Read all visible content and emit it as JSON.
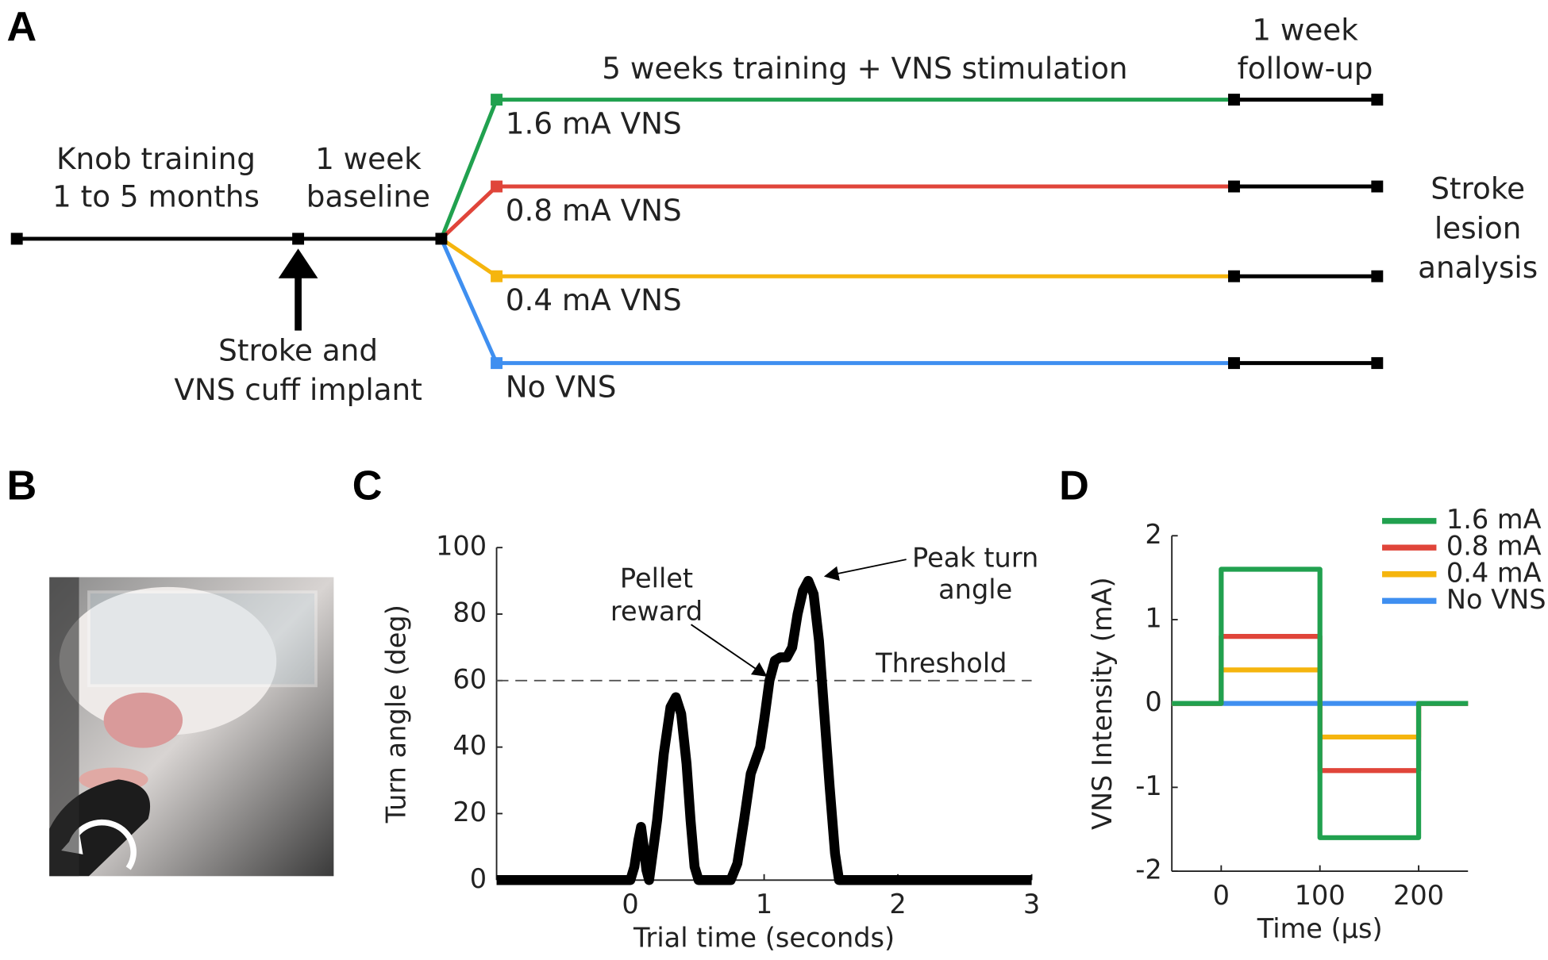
{
  "panel_labels": [
    "A",
    "B",
    "C",
    "D"
  ],
  "timeline": {
    "training": [
      "Knob training",
      "1 to 5 months"
    ],
    "baseline": [
      "1 week",
      "baseline"
    ],
    "surgery": [
      "Stroke and",
      "VNS cuff implant"
    ],
    "treatment": "5 weeks training + VNS stimulation",
    "followup": [
      "1 week",
      "follow-up"
    ],
    "analysis": [
      "Stroke",
      "lesion",
      "analysis"
    ],
    "groups": [
      {
        "label": "1.6 mA VNS",
        "color": "#21a14f"
      },
      {
        "label": "0.8 mA VNS",
        "color": "#e0453a"
      },
      {
        "label": "0.4 mA VNS",
        "color": "#f5b50e"
      },
      {
        "label": "No VNS",
        "color": "#3f8ff0"
      }
    ]
  },
  "chart_data": [
    {
      "type": "line",
      "xlabel": "Trial time (seconds)",
      "ylabel": "Turn angle (deg)",
      "color": "#000000",
      "x": [
        -1,
        0,
        0.03,
        0.06,
        0.08,
        0.1,
        0.12,
        0.14,
        0.2,
        0.25,
        0.3,
        0.34,
        0.38,
        0.42,
        0.45,
        0.48,
        0.51,
        0.75,
        0.8,
        0.85,
        0.9,
        0.97,
        1.0,
        1.04,
        1.08,
        1.12,
        1.17,
        1.21,
        1.25,
        1.29,
        1.33,
        1.37,
        1.41,
        1.45,
        1.49,
        1.53,
        1.56,
        3
      ],
      "values": [
        0,
        0,
        4,
        12,
        16,
        10,
        3,
        0,
        18,
        38,
        52,
        55,
        50,
        35,
        18,
        4,
        0,
        0,
        5,
        18,
        32,
        40,
        48,
        60,
        66,
        67,
        67,
        70,
        80,
        87,
        90,
        86,
        72,
        50,
        28,
        8,
        0,
        0
      ],
      "xlim": [
        -1,
        3
      ],
      "ylim": [
        0,
        100
      ],
      "xticks": [
        0,
        1,
        2,
        3
      ],
      "yticks": [
        0,
        20,
        40,
        60,
        80,
        100
      ],
      "threshold": 60,
      "threshold_label": "Threshold",
      "annotations": [
        [
          "Pellet",
          "reward"
        ],
        [
          "Peak turn",
          "angle"
        ]
      ]
    },
    {
      "type": "line",
      "xlabel": "Time (µs)",
      "ylabel": "VNS Intensity (mA)",
      "x": [
        -50,
        0,
        0,
        100,
        100,
        200,
        200,
        250
      ],
      "series": [
        {
          "name": "1.6 mA",
          "color": "#21a14f",
          "values": [
            0,
            0,
            1.6,
            1.6,
            -1.6,
            -1.6,
            0,
            0
          ]
        },
        {
          "name": "0.8 mA",
          "color": "#e0453a",
          "values": [
            0,
            0,
            0.8,
            0.8,
            -0.8,
            -0.8,
            0,
            0
          ]
        },
        {
          "name": "0.4 mA",
          "color": "#f5b50e",
          "values": [
            0,
            0,
            0.4,
            0.4,
            -0.4,
            -0.4,
            0,
            0
          ]
        },
        {
          "name": "No VNS",
          "color": "#3f8ff0",
          "values": [
            0,
            0,
            0,
            0,
            0,
            0,
            0,
            0
          ]
        }
      ],
      "xlim": [
        -50,
        250
      ],
      "ylim": [
        -2,
        2
      ],
      "xticks": [
        0,
        100,
        200
      ],
      "yticks": [
        -2,
        -1,
        0,
        1,
        2
      ],
      "legend": "upper right"
    }
  ]
}
